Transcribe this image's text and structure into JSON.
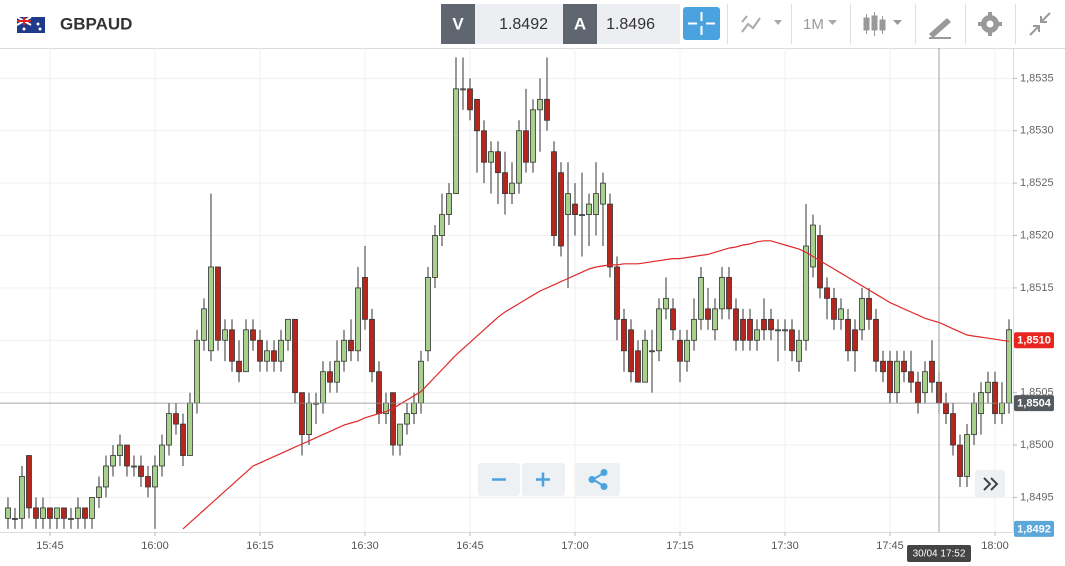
{
  "toolbar": {
    "symbol": "GBPAUD",
    "sell_label": "V",
    "sell_price": "1.8492",
    "buy_label": "A",
    "buy_price": "1.8496",
    "timeframe": "1M"
  },
  "chart_data": {
    "type": "candlestick",
    "up_color": "#a9d18e",
    "down_color": "#b5261e",
    "candles": [
      [
        1.8493,
        1.8495,
        1.8492,
        1.8494
      ],
      [
        1.8493,
        1.8494,
        1.8492,
        1.8493
      ],
      [
        1.8493,
        1.8498,
        1.8492,
        1.8497
      ],
      [
        1.8499,
        1.8499,
        1.8493,
        1.8494
      ],
      [
        1.8494,
        1.8495,
        1.8492,
        1.8493
      ],
      [
        1.8493,
        1.8495,
        1.8492,
        1.8494
      ],
      [
        1.8494,
        1.8494,
        1.8492,
        1.8493
      ],
      [
        1.8493,
        1.8494,
        1.8492,
        1.8494
      ],
      [
        1.8494,
        1.8494,
        1.8492,
        1.8493
      ],
      [
        1.8493,
        1.8494,
        1.8492,
        1.8493
      ],
      [
        1.8493,
        1.8495,
        1.8492,
        1.8494
      ],
      [
        1.8494,
        1.8494,
        1.8492,
        1.8493
      ],
      [
        1.8493,
        1.8495,
        1.8492,
        1.8495
      ],
      [
        1.8495,
        1.8497,
        1.8494,
        1.8496
      ],
      [
        1.8496,
        1.8499,
        1.8495,
        1.8498
      ],
      [
        1.8498,
        1.85,
        1.8497,
        1.8499
      ],
      [
        1.8499,
        1.8501,
        1.8498,
        1.85
      ],
      [
        1.85,
        1.85,
        1.8497,
        1.8498
      ],
      [
        1.8498,
        1.8499,
        1.8497,
        1.8498
      ],
      [
        1.8498,
        1.8499,
        1.8496,
        1.8497
      ],
      [
        1.8497,
        1.8498,
        1.8495,
        1.8496
      ],
      [
        1.8496,
        1.8499,
        1.8492,
        1.8498
      ],
      [
        1.8498,
        1.8501,
        1.8497,
        1.85
      ],
      [
        1.85,
        1.8504,
        1.8499,
        1.8503
      ],
      [
        1.8503,
        1.8504,
        1.8501,
        1.8502
      ],
      [
        1.8502,
        1.8503,
        1.8498,
        1.8499
      ],
      [
        1.8499,
        1.8505,
        1.8499,
        1.8504
      ],
      [
        1.8504,
        1.8511,
        1.8503,
        1.851
      ],
      [
        1.851,
        1.8514,
        1.8509,
        1.8513
      ],
      [
        1.8509,
        1.8524,
        1.8508,
        1.8517
      ],
      [
        1.8517,
        1.8517,
        1.8509,
        1.851
      ],
      [
        1.851,
        1.8512,
        1.8508,
        1.8511
      ],
      [
        1.8511,
        1.8512,
        1.8507,
        1.8508
      ],
      [
        1.8508,
        1.851,
        1.8506,
        1.8507
      ],
      [
        1.8507,
        1.8512,
        1.8507,
        1.8511
      ],
      [
        1.8511,
        1.8512,
        1.8509,
        1.851
      ],
      [
        1.851,
        1.8511,
        1.8507,
        1.8508
      ],
      [
        1.8508,
        1.851,
        1.8507,
        1.8509
      ],
      [
        1.8509,
        1.851,
        1.8507,
        1.8508
      ],
      [
        1.8508,
        1.8511,
        1.8507,
        1.851
      ],
      [
        1.851,
        1.8512,
        1.8509,
        1.8512
      ],
      [
        1.8512,
        1.8512,
        1.8504,
        1.8505
      ],
      [
        1.8505,
        1.8505,
        1.8499,
        1.8501
      ],
      [
        1.8501,
        1.8505,
        1.85,
        1.8504
      ],
      [
        1.8504,
        1.8505,
        1.8502,
        1.8504
      ],
      [
        1.8504,
        1.8508,
        1.8503,
        1.8507
      ],
      [
        1.8507,
        1.8508,
        1.8505,
        1.8506
      ],
      [
        1.8506,
        1.851,
        1.8505,
        1.8508
      ],
      [
        1.8508,
        1.8511,
        1.8507,
        1.851
      ],
      [
        1.851,
        1.8512,
        1.8508,
        1.8509
      ],
      [
        1.8509,
        1.8517,
        1.8508,
        1.8515
      ],
      [
        1.8516,
        1.8519,
        1.8511,
        1.8512
      ],
      [
        1.8512,
        1.8513,
        1.8506,
        1.8507
      ],
      [
        1.8507,
        1.8508,
        1.8502,
        1.8503
      ],
      [
        1.8503,
        1.8505,
        1.8502,
        1.8504
      ],
      [
        1.8505,
        1.8505,
        1.8499,
        1.85
      ],
      [
        1.85,
        1.8502,
        1.8499,
        1.8502
      ],
      [
        1.8502,
        1.8504,
        1.8501,
        1.8503
      ],
      [
        1.8503,
        1.8505,
        1.8502,
        1.8504
      ],
      [
        1.8504,
        1.8509,
        1.8503,
        1.8508
      ],
      [
        1.8509,
        1.8517,
        1.8508,
        1.8516
      ],
      [
        1.8516,
        1.8521,
        1.8515,
        1.852
      ],
      [
        1.852,
        1.8524,
        1.8519,
        1.8522
      ],
      [
        1.8522,
        1.8525,
        1.8521,
        1.8524
      ],
      [
        1.8524,
        1.8537,
        1.8524,
        1.8534
      ],
      [
        1.8534,
        1.8537,
        1.8532,
        1.8534
      ],
      [
        1.8534,
        1.8535,
        1.8531,
        1.8532
      ],
      [
        1.8533,
        1.8533,
        1.8526,
        1.853
      ],
      [
        1.853,
        1.8531,
        1.8525,
        1.8527
      ],
      [
        1.8527,
        1.8529,
        1.8524,
        1.8528
      ],
      [
        1.8528,
        1.8529,
        1.8523,
        1.8526
      ],
      [
        1.8526,
        1.8528,
        1.8522,
        1.8524
      ],
      [
        1.8524,
        1.8527,
        1.8523,
        1.8525
      ],
      [
        1.8525,
        1.8531,
        1.8524,
        1.853
      ],
      [
        1.853,
        1.8534,
        1.8526,
        1.8527
      ],
      [
        1.8527,
        1.8533,
        1.8526,
        1.8532
      ],
      [
        1.8532,
        1.8535,
        1.8528,
        1.8533
      ],
      [
        1.8533,
        1.8537,
        1.853,
        1.8531
      ],
      [
        1.8528,
        1.8529,
        1.8519,
        1.852
      ],
      [
        1.8526,
        1.8527,
        1.8518,
        1.8519
      ],
      [
        1.8522,
        1.8527,
        1.8515,
        1.8524
      ],
      [
        1.8523,
        1.8525,
        1.852,
        1.8522
      ],
      [
        1.8522,
        1.8526,
        1.8518,
        1.8522
      ],
      [
        1.8522,
        1.8524,
        1.8519,
        1.8523
      ],
      [
        1.8522,
        1.8527,
        1.852,
        1.8524
      ],
      [
        1.8523,
        1.8526,
        1.8519,
        1.8525
      ],
      [
        1.8523,
        1.8524,
        1.8516,
        1.8517
      ],
      [
        1.8517,
        1.8518,
        1.851,
        1.8512
      ],
      [
        1.8512,
        1.8513,
        1.8507,
        1.8509
      ],
      [
        1.8511,
        1.8512,
        1.8506,
        1.8507
      ],
      [
        1.8509,
        1.851,
        1.8506,
        1.8506
      ],
      [
        1.8506,
        1.8511,
        1.8506,
        1.851
      ],
      [
        1.8509,
        1.8511,
        1.8505,
        1.8509
      ],
      [
        1.8509,
        1.8514,
        1.8508,
        1.8513
      ],
      [
        1.8513,
        1.8516,
        1.8512,
        1.8514
      ],
      [
        1.8513,
        1.8514,
        1.851,
        1.8511
      ],
      [
        1.851,
        1.8511,
        1.8506,
        1.8508
      ],
      [
        1.8508,
        1.8511,
        1.8507,
        1.851
      ],
      [
        1.851,
        1.8514,
        1.8509,
        1.8512
      ],
      [
        1.8512,
        1.8517,
        1.8511,
        1.8516
      ],
      [
        1.8513,
        1.8515,
        1.8511,
        1.8512
      ],
      [
        1.8511,
        1.8514,
        1.851,
        1.8513
      ],
      [
        1.8513,
        1.8517,
        1.8512,
        1.8516
      ],
      [
        1.8516,
        1.8517,
        1.8512,
        1.8513
      ],
      [
        1.8513,
        1.8514,
        1.8509,
        1.851
      ],
      [
        1.8512,
        1.8513,
        1.8509,
        1.851
      ],
      [
        1.8512,
        1.8513,
        1.8509,
        1.851
      ],
      [
        1.851,
        1.8512,
        1.8509,
        1.8511
      ],
      [
        1.8512,
        1.8514,
        1.851,
        1.8511
      ],
      [
        1.8512,
        1.8513,
        1.851,
        1.8511
      ],
      [
        1.8511,
        1.8512,
        1.8508,
        1.8511
      ],
      [
        1.8511,
        1.8512,
        1.8509,
        1.8511
      ],
      [
        1.8511,
        1.8512,
        1.8508,
        1.8509
      ],
      [
        1.8508,
        1.8511,
        1.8507,
        1.851
      ],
      [
        1.851,
        1.8523,
        1.8509,
        1.8519
      ],
      [
        1.8517,
        1.8522,
        1.8516,
        1.8521
      ],
      [
        1.852,
        1.8521,
        1.8514,
        1.8515
      ],
      [
        1.8515,
        1.8516,
        1.8512,
        1.8514
      ],
      [
        1.8514,
        1.8515,
        1.8511,
        1.8512
      ],
      [
        1.8512,
        1.8514,
        1.8511,
        1.8513
      ],
      [
        1.8512,
        1.8513,
        1.8508,
        1.8509
      ],
      [
        1.8511,
        1.8512,
        1.8507,
        1.8509
      ],
      [
        1.8511,
        1.8515,
        1.851,
        1.8514
      ],
      [
        1.8514,
        1.8515,
        1.8511,
        1.8512
      ],
      [
        1.8512,
        1.8513,
        1.8507,
        1.8508
      ],
      [
        1.8508,
        1.8509,
        1.8506,
        1.8507
      ],
      [
        1.8508,
        1.8509,
        1.8504,
        1.8505
      ],
      [
        1.8505,
        1.8509,
        1.8504,
        1.8508
      ],
      [
        1.8508,
        1.8509,
        1.8506,
        1.8507
      ],
      [
        1.8507,
        1.8509,
        1.8505,
        1.8506
      ],
      [
        1.8506,
        1.8507,
        1.8503,
        1.8504
      ],
      [
        1.8505,
        1.8508,
        1.8504,
        1.8507
      ],
      [
        1.8508,
        1.851,
        1.8505,
        1.8506
      ],
      [
        1.8506,
        1.8507,
        1.8503,
        1.8504
      ],
      [
        1.8504,
        1.8505,
        1.8502,
        1.8503
      ],
      [
        1.8503,
        1.8504,
        1.8499,
        1.85
      ],
      [
        1.85,
        1.8501,
        1.8496,
        1.8497
      ],
      [
        1.8497,
        1.8502,
        1.8496,
        1.8501
      ],
      [
        1.8501,
        1.8505,
        1.85,
        1.8504
      ],
      [
        1.8503,
        1.8506,
        1.8501,
        1.8505
      ],
      [
        1.8505,
        1.8507,
        1.8504,
        1.8506
      ],
      [
        1.8506,
        1.8507,
        1.8502,
        1.8503
      ],
      [
        1.8503,
        1.8506,
        1.8502,
        1.8504
      ],
      [
        1.8504,
        1.8512,
        1.8503,
        1.8511
      ]
    ],
    "ma": {
      "color": "#e02a2a",
      "values": [
        null,
        null,
        null,
        null,
        null,
        null,
        null,
        null,
        null,
        null,
        null,
        null,
        null,
        null,
        null,
        null,
        null,
        null,
        null,
        null,
        null,
        null,
        null,
        null,
        null,
        1.8492,
        1.84926,
        1.84932,
        1.84938,
        1.84944,
        1.8495,
        1.84956,
        1.84962,
        1.84968,
        1.84974,
        1.8498,
        1.84983,
        1.84986,
        1.84989,
        1.84992,
        1.84995,
        1.84998,
        1.85001,
        1.85004,
        1.85007,
        1.8501,
        1.85013,
        1.85016,
        1.85019,
        1.85021,
        1.85023,
        1.85026,
        1.85028,
        1.8503,
        1.85032,
        1.85035,
        1.85039,
        1.85043,
        1.85047,
        1.85051,
        1.85058,
        1.85065,
        1.85072,
        1.85079,
        1.85086,
        1.85092,
        1.85098,
        1.85104,
        1.8511,
        1.85116,
        1.85122,
        1.85127,
        1.85131,
        1.85135,
        1.85139,
        1.85143,
        1.85147,
        1.8515,
        1.85153,
        1.85156,
        1.85159,
        1.85162,
        1.85165,
        1.85168,
        1.8517,
        1.85171,
        1.85172,
        1.85172,
        1.85173,
        1.85173,
        1.85173,
        1.85174,
        1.85175,
        1.85176,
        1.85177,
        1.85178,
        1.85178,
        1.85179,
        1.8518,
        1.85181,
        1.85182,
        1.85184,
        1.85186,
        1.85188,
        1.85189,
        1.85191,
        1.85192,
        1.85194,
        1.85195,
        1.85195,
        1.85193,
        1.85191,
        1.85189,
        1.85187,
        1.85184,
        1.8518,
        1.85176,
        1.85172,
        1.85168,
        1.85164,
        1.8516,
        1.85156,
        1.85152,
        1.85148,
        1.85144,
        1.8514,
        1.85136,
        1.85133,
        1.8513,
        1.85127,
        1.85124,
        1.85121,
        1.85119,
        1.85117,
        1.85114,
        1.85111,
        1.85108,
        1.85105,
        1.85104,
        1.85103,
        1.85102,
        1.85101,
        1.851,
        1.85099
      ]
    },
    "xlim": [
      -1.14,
      143.57
    ],
    "xticks": [
      {
        "value": 6,
        "label": "15:45"
      },
      {
        "value": 21,
        "label": "16:00"
      },
      {
        "value": 36,
        "label": "16:15"
      },
      {
        "value": 51,
        "label": "16:30"
      },
      {
        "value": 66,
        "label": "16:45"
      },
      {
        "value": 81,
        "label": "17:00"
      },
      {
        "value": 96,
        "label": "17:15"
      },
      {
        "value": 111,
        "label": "17:30"
      },
      {
        "value": 126,
        "label": "17:45"
      },
      {
        "value": 141,
        "label": "18:00"
      }
    ],
    "ylim": [
      1.84917,
      1.85379
    ],
    "yticks": [
      {
        "value": 1.8495,
        "label": "1,8495"
      },
      {
        "value": 1.85,
        "label": "1,8500"
      },
      {
        "value": 1.8505,
        "label": "1,8505"
      },
      {
        "value": 1.851,
        "label": "1,8510"
      },
      {
        "value": 1.8515,
        "label": "1,8515"
      },
      {
        "value": 1.852,
        "label": "1,8520"
      },
      {
        "value": 1.8525,
        "label": "1,8525"
      },
      {
        "value": 1.853,
        "label": "1,8530"
      },
      {
        "value": 1.8535,
        "label": "1,8535"
      }
    ],
    "grid": true,
    "price_tags": [
      {
        "value": 1.851,
        "label": "1,8510",
        "color": "#e8251f"
      },
      {
        "value": 1.8504,
        "label": "1,8504",
        "color": "#555a5f"
      },
      {
        "value": 1.8492,
        "label": "1,8492",
        "color": "#5ba7d9"
      }
    ],
    "crosshair": {
      "x": {
        "value": 133,
        "label": "30/04 17:52"
      },
      "y": 1.8504
    }
  }
}
